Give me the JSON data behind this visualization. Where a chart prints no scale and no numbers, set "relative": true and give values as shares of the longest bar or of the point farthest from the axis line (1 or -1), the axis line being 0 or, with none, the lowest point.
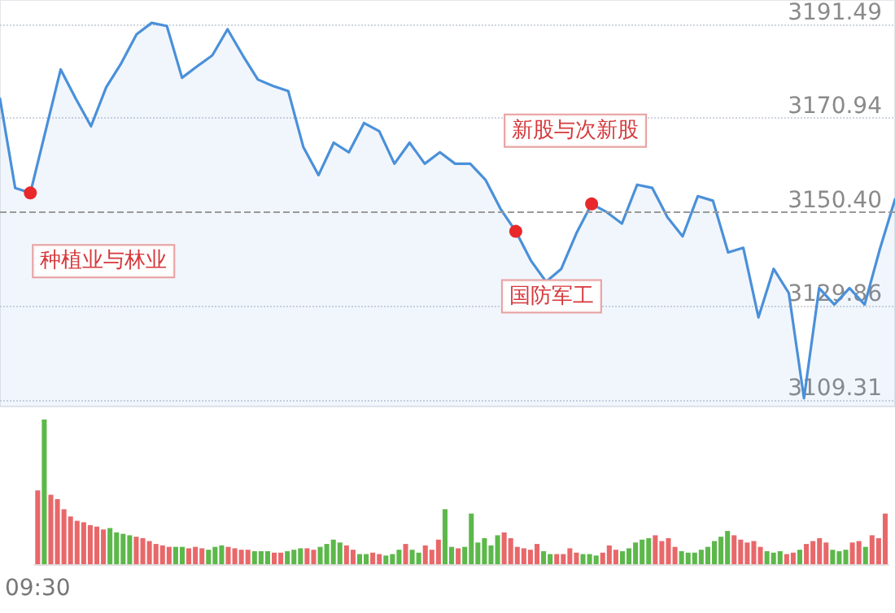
{
  "chart_data": [
    {
      "type": "area",
      "categories": [
        null,
        null,
        null,
        null,
        null,
        null,
        null,
        null,
        null,
        null,
        null,
        null,
        null,
        null,
        null,
        null,
        null,
        null,
        null,
        null,
        null,
        null,
        null,
        null,
        null,
        null,
        null,
        null,
        null,
        null,
        null,
        null,
        null,
        null,
        null,
        null,
        null,
        null,
        null,
        null,
        null,
        null,
        null,
        null,
        null,
        null,
        null,
        null,
        null,
        null,
        null,
        null,
        null,
        null,
        null,
        null,
        null,
        null,
        null,
        null
      ],
      "series": [
        {
          "color": "#4a90d9",
          "values": [
            3175.2,
            3155.7,
            3154.6,
            3168.1,
            3181.6,
            3175.2,
            3169.2,
            3177.7,
            3183.0,
            3189.3,
            3191.8,
            3191.1,
            3179.8,
            3182.3,
            3184.7,
            3190.4,
            3184.7,
            3179.4,
            3178.0,
            3176.9,
            3164.6,
            3158.5,
            3165.6,
            3163.5,
            3169.9,
            3168.1,
            3161.0,
            3165.6,
            3161.0,
            3163.5,
            3161.0,
            3161.0,
            3157.5,
            3151.1,
            3146.2,
            3139.8,
            3135.2,
            3138.0,
            3145.8,
            3152.2,
            3150.4,
            3147.9,
            3156.4,
            3155.7,
            3149.3,
            3145.1,
            3153.9,
            3152.9,
            3141.6,
            3142.6,
            3127.4,
            3138.0,
            3132.7,
            3109.7,
            3133.8,
            3130.2,
            3133.8,
            3130.2,
            3142.3,
            3153.2
          ]
        }
      ],
      "ylim": [
        3107.9,
        3196.8
      ],
      "yticks": [
        3109.31,
        3129.86,
        {
          "value": 3150.4,
          "label": "3150.40"
        },
        3170.94,
        3191.49
      ],
      "ref_lines": [
        {
          "axis": "y",
          "value": 3150.4,
          "color": "#999999",
          "line_style": "dashed"
        }
      ],
      "annotations": [
        "种植业与林业",
        "国防军工",
        "新股与次新股"
      ],
      "grid": "y",
      "tick_labels": "y",
      "marker": "none"
    },
    {
      "type": "bar",
      "relative": true,
      "tick_labels": "x",
      "categories": [
        "09:30",
        null,
        null,
        null,
        null,
        null,
        null,
        null,
        null,
        null,
        null,
        null,
        null,
        null,
        null,
        null,
        null,
        null,
        null,
        null,
        null,
        null,
        null,
        null,
        null,
        null,
        null,
        null,
        null,
        null,
        null,
        null,
        null,
        null,
        null,
        null,
        null,
        null,
        null,
        null,
        null,
        null,
        null,
        null,
        null,
        null,
        null,
        null,
        null,
        null,
        null,
        null,
        null,
        null,
        null,
        null,
        null,
        null,
        null,
        null,
        null,
        null,
        null,
        null,
        null,
        null,
        null,
        null,
        null,
        null,
        null,
        null,
        null,
        null,
        null,
        null,
        null,
        null,
        null,
        null,
        null,
        null,
        null,
        null,
        null,
        null,
        null,
        null,
        null,
        null,
        null,
        null,
        null,
        null,
        null,
        null,
        null,
        null,
        null,
        null,
        null,
        null,
        null,
        null,
        null,
        null,
        null,
        null,
        null,
        null,
        null,
        null,
        null,
        null,
        null,
        null,
        null,
        null,
        null,
        null,
        null,
        null,
        null,
        null,
        null,
        null,
        null,
        null,
        null,
        null
      ],
      "values": [
        0.51,
        1.0,
        0.48,
        0.45,
        0.38,
        0.33,
        0.3,
        0.29,
        0.27,
        0.26,
        0.24,
        0.25,
        0.22,
        0.21,
        0.2,
        0.19,
        0.18,
        0.16,
        0.14,
        0.13,
        0.12,
        0.12,
        0.12,
        0.11,
        0.12,
        0.11,
        0.1,
        0.12,
        0.13,
        0.12,
        0.11,
        0.1,
        0.1,
        0.09,
        0.09,
        0.09,
        0.08,
        0.08,
        0.09,
        0.1,
        0.11,
        0.11,
        0.1,
        0.12,
        0.14,
        0.17,
        0.15,
        0.13,
        0.1,
        0.07,
        0.07,
        0.08,
        0.07,
        0.06,
        0.07,
        0.1,
        0.14,
        0.1,
        0.08,
        0.13,
        0.1,
        0.17,
        0.38,
        0.12,
        0.11,
        0.12,
        0.35,
        0.15,
        0.18,
        0.13,
        0.2,
        0.22,
        0.18,
        0.12,
        0.11,
        0.1,
        0.14,
        0.09,
        0.07,
        0.07,
        0.07,
        0.11,
        0.08,
        0.07,
        0.07,
        0.06,
        0.08,
        0.13,
        0.1,
        0.09,
        0.11,
        0.15,
        0.17,
        0.18,
        0.2,
        0.16,
        0.18,
        0.12,
        0.09,
        0.08,
        0.08,
        0.1,
        0.12,
        0.16,
        0.19,
        0.23,
        0.2,
        0.17,
        0.15,
        0.16,
        0.12,
        0.09,
        0.08,
        0.09,
        0.07,
        0.08,
        0.1,
        0.14,
        0.16,
        0.18,
        0.15,
        0.1,
        0.09,
        0.1,
        0.15,
        0.16,
        0.12,
        0.2,
        0.18,
        0.35
      ],
      "colors": [
        "#e8686a",
        "#5cb84a",
        "#e8686a",
        "#e8686a",
        "#e8686a",
        "#e8686a",
        "#e8686a",
        "#e8686a",
        "#e8686a",
        "#e8686a",
        "#e8686a",
        "#5cb84a",
        "#5cb84a",
        "#5cb84a",
        "#5cb84a",
        "#e8686a",
        "#e8686a",
        "#e8686a",
        "#e8686a",
        "#e8686a",
        "#e8686a",
        "#5cb84a",
        "#5cb84a",
        "#e8686a",
        "#e8686a",
        "#e8686a",
        "#5cb84a",
        "#5cb84a",
        "#5cb84a",
        "#e8686a",
        "#e8686a",
        "#e8686a",
        "#e8686a",
        "#5cb84a",
        "#5cb84a",
        "#5cb84a",
        "#e8686a",
        "#e8686a",
        "#5cb84a",
        "#5cb84a",
        "#5cb84a",
        "#e8686a",
        "#e8686a",
        "#5cb84a",
        "#5cb84a",
        "#5cb84a",
        "#5cb84a",
        "#e8686a",
        "#e8686a",
        "#5cb84a",
        "#5cb84a",
        "#e8686a",
        "#e8686a",
        "#5cb84a",
        "#5cb84a",
        "#5cb84a",
        "#e8686a",
        "#5cb84a",
        "#5cb84a",
        "#e8686a",
        "#e8686a",
        "#e8686a",
        "#5cb84a",
        "#5cb84a",
        "#e8686a",
        "#5cb84a",
        "#5cb84a",
        "#5cb84a",
        "#5cb84a",
        "#5cb84a",
        "#5cb84a",
        "#e8686a",
        "#e8686a",
        "#e8686a",
        "#e8686a",
        "#e8686a",
        "#e8686a",
        "#5cb84a",
        "#5cb84a",
        "#e8686a",
        "#e8686a",
        "#e8686a",
        "#e8686a",
        "#5cb84a",
        "#5cb84a",
        "#5cb84a",
        "#e8686a",
        "#e8686a",
        "#e8686a",
        "#5cb84a",
        "#5cb84a",
        "#5cb84a",
        "#5cb84a",
        "#5cb84a",
        "#e8686a",
        "#e8686a",
        "#e8686a",
        "#e8686a",
        "#5cb84a",
        "#5cb84a",
        "#5cb84a",
        "#5cb84a",
        "#5cb84a",
        "#5cb84a",
        "#5cb84a",
        "#5cb84a",
        "#e8686a",
        "#e8686a",
        "#e8686a",
        "#e8686a",
        "#e8686a",
        "#5cb84a",
        "#5cb84a",
        "#5cb84a",
        "#e8686a",
        "#e8686a",
        "#5cb84a",
        "#e8686a",
        "#e8686a",
        "#e8686a",
        "#e8686a",
        "#5cb84a",
        "#5cb84a",
        "#5cb84a",
        "#e8686a",
        "#e8686a",
        "#5cb84a",
        "#e8686a",
        "#e8686a",
        "#e8686a"
      ]
    }
  ]
}
